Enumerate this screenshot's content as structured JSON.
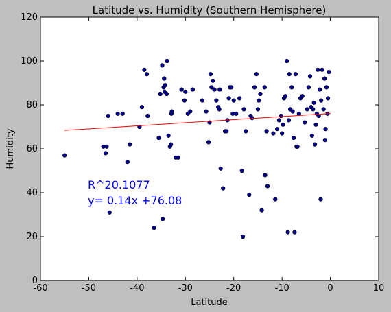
{
  "chart_data": {
    "type": "scatter",
    "title": "Latitude vs. Humidity (Southern Hemisphere)",
    "xlabel": "Latitude",
    "ylabel": "Humidity",
    "xlim": [
      -60,
      10
    ],
    "ylim": [
      0,
      120
    ],
    "xticks": [
      -60,
      -50,
      -40,
      -30,
      -20,
      -10,
      0,
      10
    ],
    "yticks": [
      0,
      20,
      40,
      60,
      80,
      100,
      120
    ],
    "grid": false,
    "colors": {
      "point_fill": "#00008b",
      "line": "#ff0000",
      "annotation": "#0000ff",
      "background": "#ffffff",
      "figure": "#bfbfbf"
    },
    "regression": {
      "slope": 0.14,
      "intercept": 76.08,
      "x_range": [
        -55,
        0
      ]
    },
    "annotations": [
      "R^20.1077",
      "y= 0.14x +76.08"
    ],
    "points": [
      [
        -55,
        57
      ],
      [
        -47,
        61
      ],
      [
        -46.5,
        58
      ],
      [
        -46.3,
        61
      ],
      [
        -46,
        75
      ],
      [
        -45.7,
        31
      ],
      [
        -44,
        76
      ],
      [
        -43,
        76
      ],
      [
        -42,
        54
      ],
      [
        -41.5,
        62
      ],
      [
        -39.5,
        70
      ],
      [
        -39,
        79
      ],
      [
        -38.5,
        96
      ],
      [
        -38,
        94
      ],
      [
        -37.8,
        75
      ],
      [
        -36.5,
        24
      ],
      [
        -35.5,
        65
      ],
      [
        -35.2,
        85
      ],
      [
        -34.8,
        98
      ],
      [
        -34.5,
        88
      ],
      [
        -34.4,
        92
      ],
      [
        -34.3,
        86
      ],
      [
        -34.2,
        89
      ],
      [
        -33.9,
        85
      ],
      [
        -33.8,
        100
      ],
      [
        -33.5,
        66
      ],
      [
        -33.2,
        61
      ],
      [
        -33,
        62
      ],
      [
        -32.9,
        76
      ],
      [
        -32.8,
        77
      ],
      [
        -34.7,
        28
      ],
      [
        -32,
        56
      ],
      [
        -31.5,
        56
      ],
      [
        -30.8,
        87
      ],
      [
        -30.2,
        82
      ],
      [
        -30,
        86
      ],
      [
        -29.5,
        76
      ],
      [
        -29,
        77
      ],
      [
        -28.5,
        87
      ],
      [
        -26.5,
        82
      ],
      [
        -25.7,
        77
      ],
      [
        -25.2,
        63
      ],
      [
        -25,
        72
      ],
      [
        -24.8,
        94
      ],
      [
        -24.6,
        88
      ],
      [
        -24.3,
        91
      ],
      [
        -24,
        87
      ],
      [
        -23.6,
        82
      ],
      [
        -23.2,
        79
      ],
      [
        -23,
        78
      ],
      [
        -22.9,
        87
      ],
      [
        -22.7,
        51
      ],
      [
        -22.2,
        42
      ],
      [
        -21.8,
        68
      ],
      [
        -21.5,
        68
      ],
      [
        -21.3,
        73
      ],
      [
        -21,
        83
      ],
      [
        -20.8,
        88
      ],
      [
        -20.5,
        88
      ],
      [
        -20.2,
        76
      ],
      [
        -20,
        82
      ],
      [
        -19.5,
        76
      ],
      [
        -18.8,
        83
      ],
      [
        -18.3,
        50
      ],
      [
        -18.1,
        20
      ],
      [
        -17.9,
        78
      ],
      [
        -17.5,
        68
      ],
      [
        -16.8,
        39
      ],
      [
        -16.5,
        75
      ],
      [
        -16.2,
        74
      ],
      [
        -15.7,
        88
      ],
      [
        -15.3,
        94
      ],
      [
        -15,
        78
      ],
      [
        -14.8,
        82
      ],
      [
        -14.5,
        85
      ],
      [
        -14.2,
        32
      ],
      [
        -13.6,
        88
      ],
      [
        -13.5,
        48
      ],
      [
        -13.2,
        68
      ],
      [
        -13,
        43
      ],
      [
        -11.8,
        67
      ],
      [
        -11.4,
        37
      ],
      [
        -11,
        69
      ],
      [
        -10.6,
        73
      ],
      [
        -10.2,
        75
      ],
      [
        -10,
        67
      ],
      [
        -9.8,
        71
      ],
      [
        -9.6,
        83
      ],
      [
        -9.3,
        84
      ],
      [
        -9,
        100
      ],
      [
        -8.8,
        22
      ],
      [
        -8.6,
        73
      ],
      [
        -8.5,
        94
      ],
      [
        -8.3,
        78
      ],
      [
        -8,
        88
      ],
      [
        -7.8,
        77
      ],
      [
        -7.6,
        65
      ],
      [
        -7.4,
        22
      ],
      [
        -7.2,
        94
      ],
      [
        -7,
        61
      ],
      [
        -6.8,
        61
      ],
      [
        -6.5,
        76
      ],
      [
        -6.2,
        83
      ],
      [
        -5.8,
        84
      ],
      [
        -5.3,
        72
      ],
      [
        -4.8,
        78
      ],
      [
        -4.5,
        88
      ],
      [
        -4.2,
        93
      ],
      [
        -4,
        79
      ],
      [
        -3.8,
        66
      ],
      [
        -3.6,
        78
      ],
      [
        -3.4,
        81
      ],
      [
        -3.2,
        62
      ],
      [
        -3,
        71
      ],
      [
        -2.8,
        76
      ],
      [
        -2.6,
        96
      ],
      [
        -2.4,
        75
      ],
      [
        -2.2,
        87
      ],
      [
        -2,
        37
      ],
      [
        -1.9,
        82
      ],
      [
        -1.7,
        96
      ],
      [
        -1.4,
        78
      ],
      [
        -1.2,
        92
      ],
      [
        -1.1,
        64
      ],
      [
        -1,
        69
      ],
      [
        -0.8,
        88
      ],
      [
        -0.6,
        76
      ],
      [
        -0.5,
        83
      ],
      [
        -0.3,
        95
      ]
    ]
  }
}
